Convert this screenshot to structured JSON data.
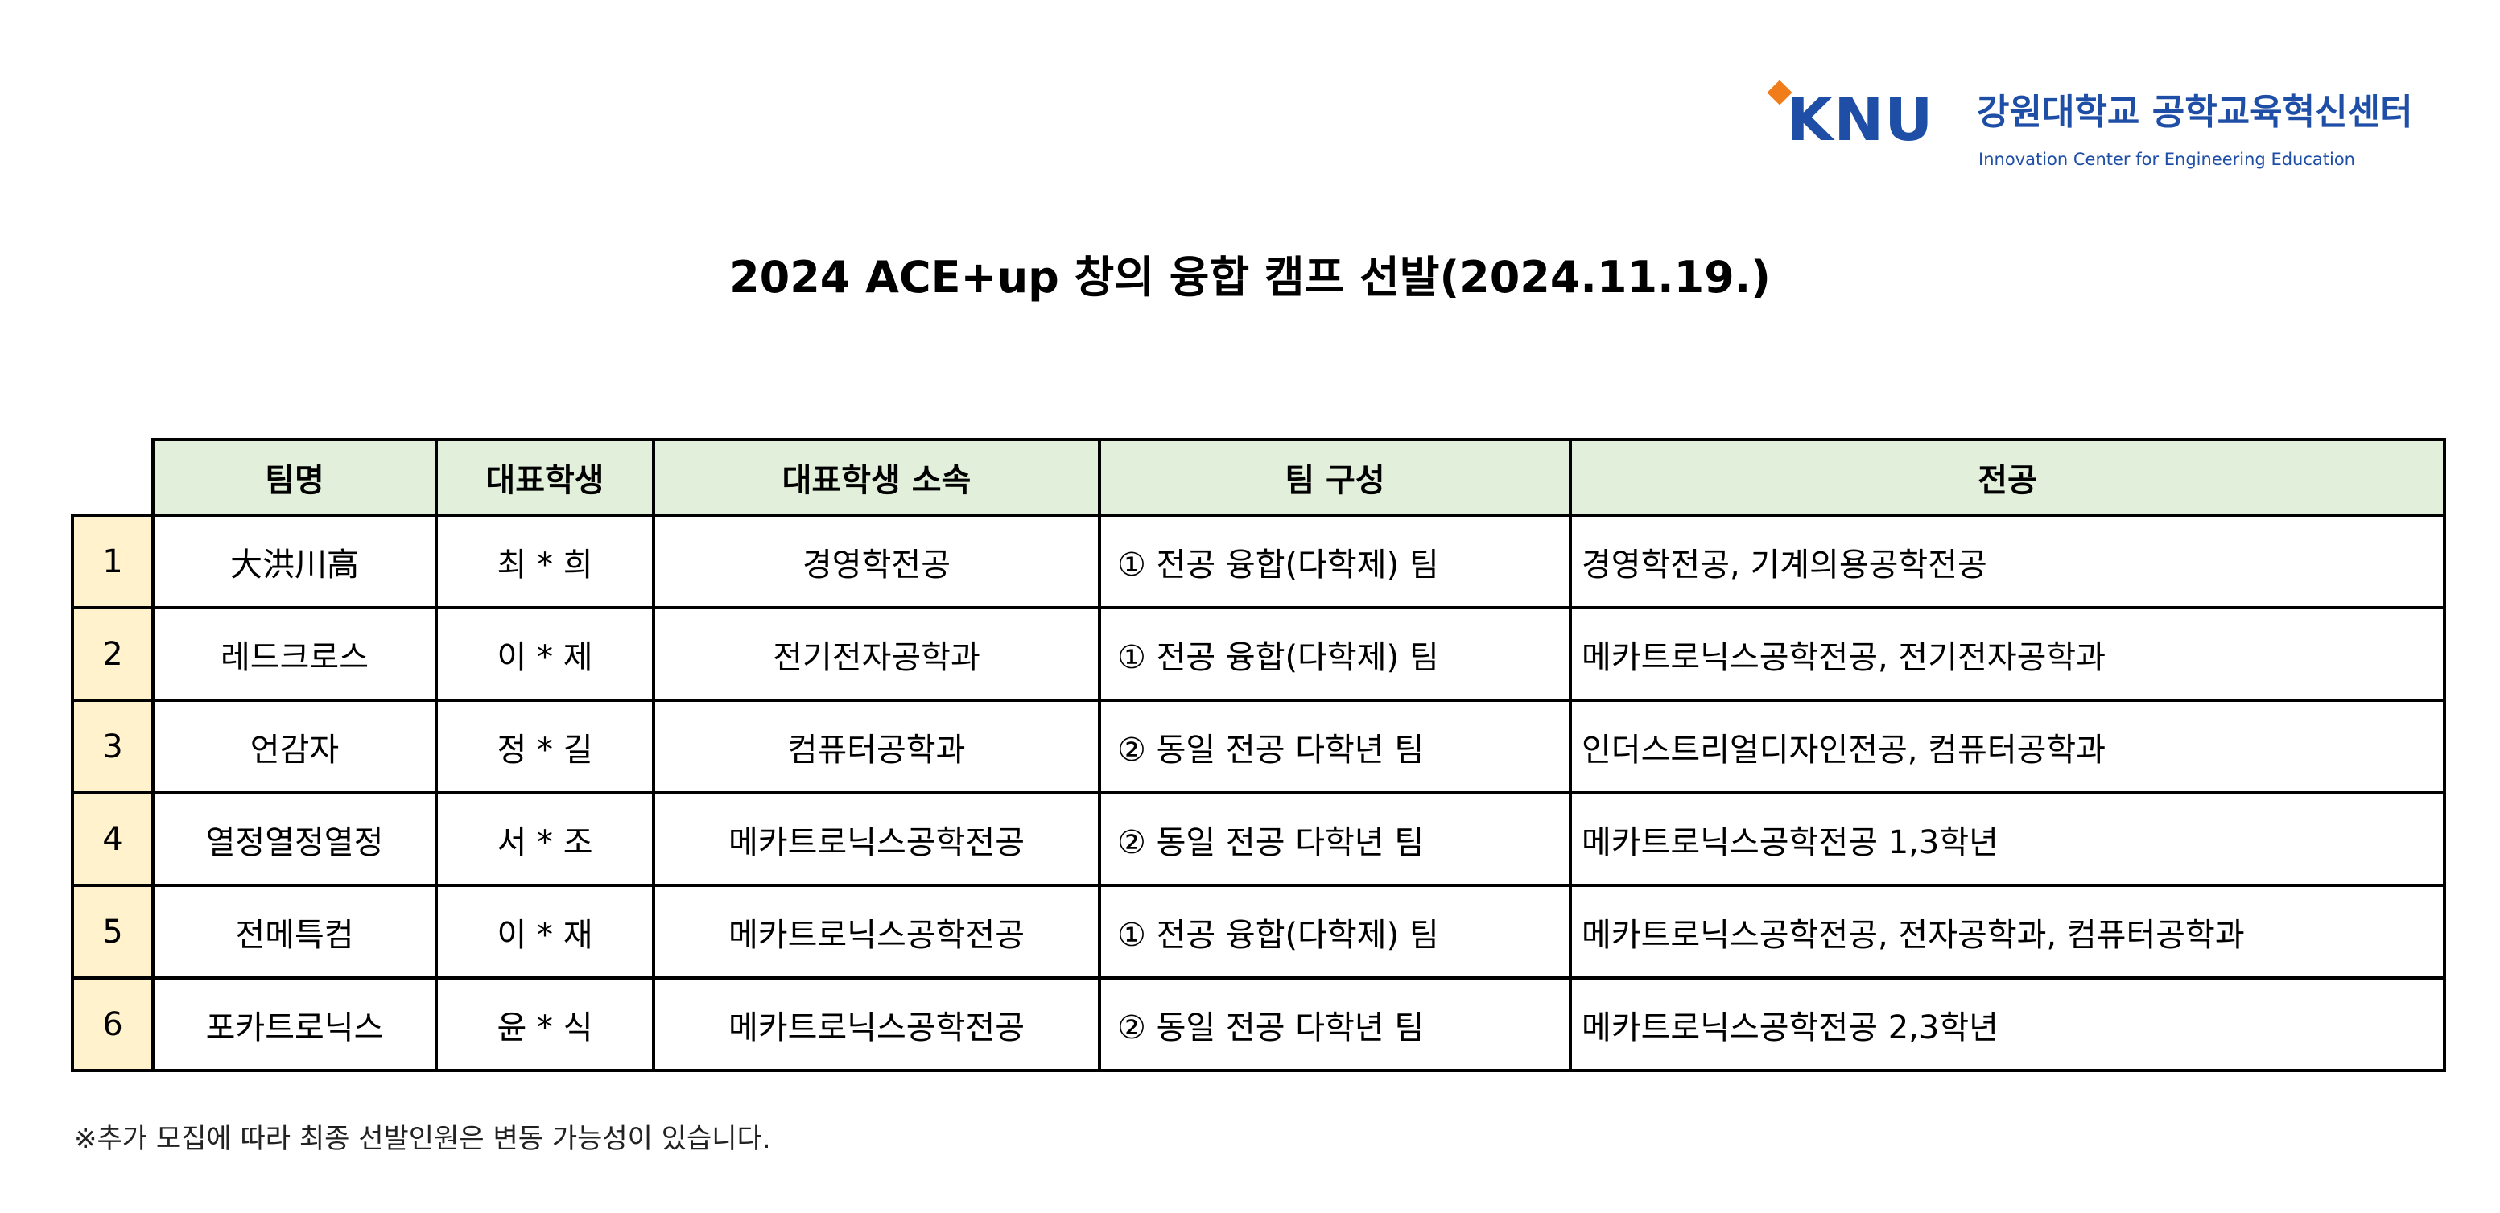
{
  "logo": {
    "knu_text": "KNU",
    "name_kr": "강원대학교 공학교육혁신센터",
    "name_en": "Innovation Center for Engineering Education",
    "accent_color": "#f07d1a",
    "brand_color": "#1e4ea6"
  },
  "title": "2024 ACE+up 창의 융합 캠프 선발(2024.11.19.)",
  "table": {
    "header_bg": "#e2efda",
    "number_bg": "#fff2cc",
    "headers": [
      "팀명",
      "대표학생",
      "대표학생 소속",
      "팀 구성",
      "전공"
    ],
    "rows": [
      {
        "no": "1",
        "team": "大洪川高",
        "leader": "최 * 희",
        "affiliation": "경영학전공",
        "composition": "① 전공 융합(다학제) 팀",
        "majors": "경영학전공, 기계의용공학전공"
      },
      {
        "no": "2",
        "team": "레드크로스",
        "leader": "이 * 제",
        "affiliation": "전기전자공학과",
        "composition": "① 전공 융합(다학제) 팀",
        "majors": "메카트로닉스공학전공, 전기전자공학과"
      },
      {
        "no": "3",
        "team": "언감자",
        "leader": "정 * 길",
        "affiliation": "컴퓨터공학과",
        "composition": "② 동일 전공 다학년 팀",
        "majors": "인더스트리얼디자인전공, 컴퓨터공학과"
      },
      {
        "no": "4",
        "team": "열정열정열정",
        "leader": "서 * 조",
        "affiliation": "메카트로닉스공학전공",
        "composition": "② 동일 전공 다학년 팀",
        "majors": "메카트로닉스공학전공 1,3학년"
      },
      {
        "no": "5",
        "team": "전메특컴",
        "leader": "이 * 재",
        "affiliation": "메카트로닉스공학전공",
        "composition": "① 전공 융합(다학제) 팀",
        "majors": "메카트로닉스공학전공, 전자공학과, 컴퓨터공학과"
      },
      {
        "no": "6",
        "team": "포카트로닉스",
        "leader": "윤 * 식",
        "affiliation": "메카트로닉스공학전공",
        "composition": "② 동일 전공 다학년 팀",
        "majors": "메카트로닉스공학전공 2,3학년"
      }
    ]
  },
  "note": "※추가 모집에 따라 최종 선발인원은 변동 가능성이 있습니다."
}
